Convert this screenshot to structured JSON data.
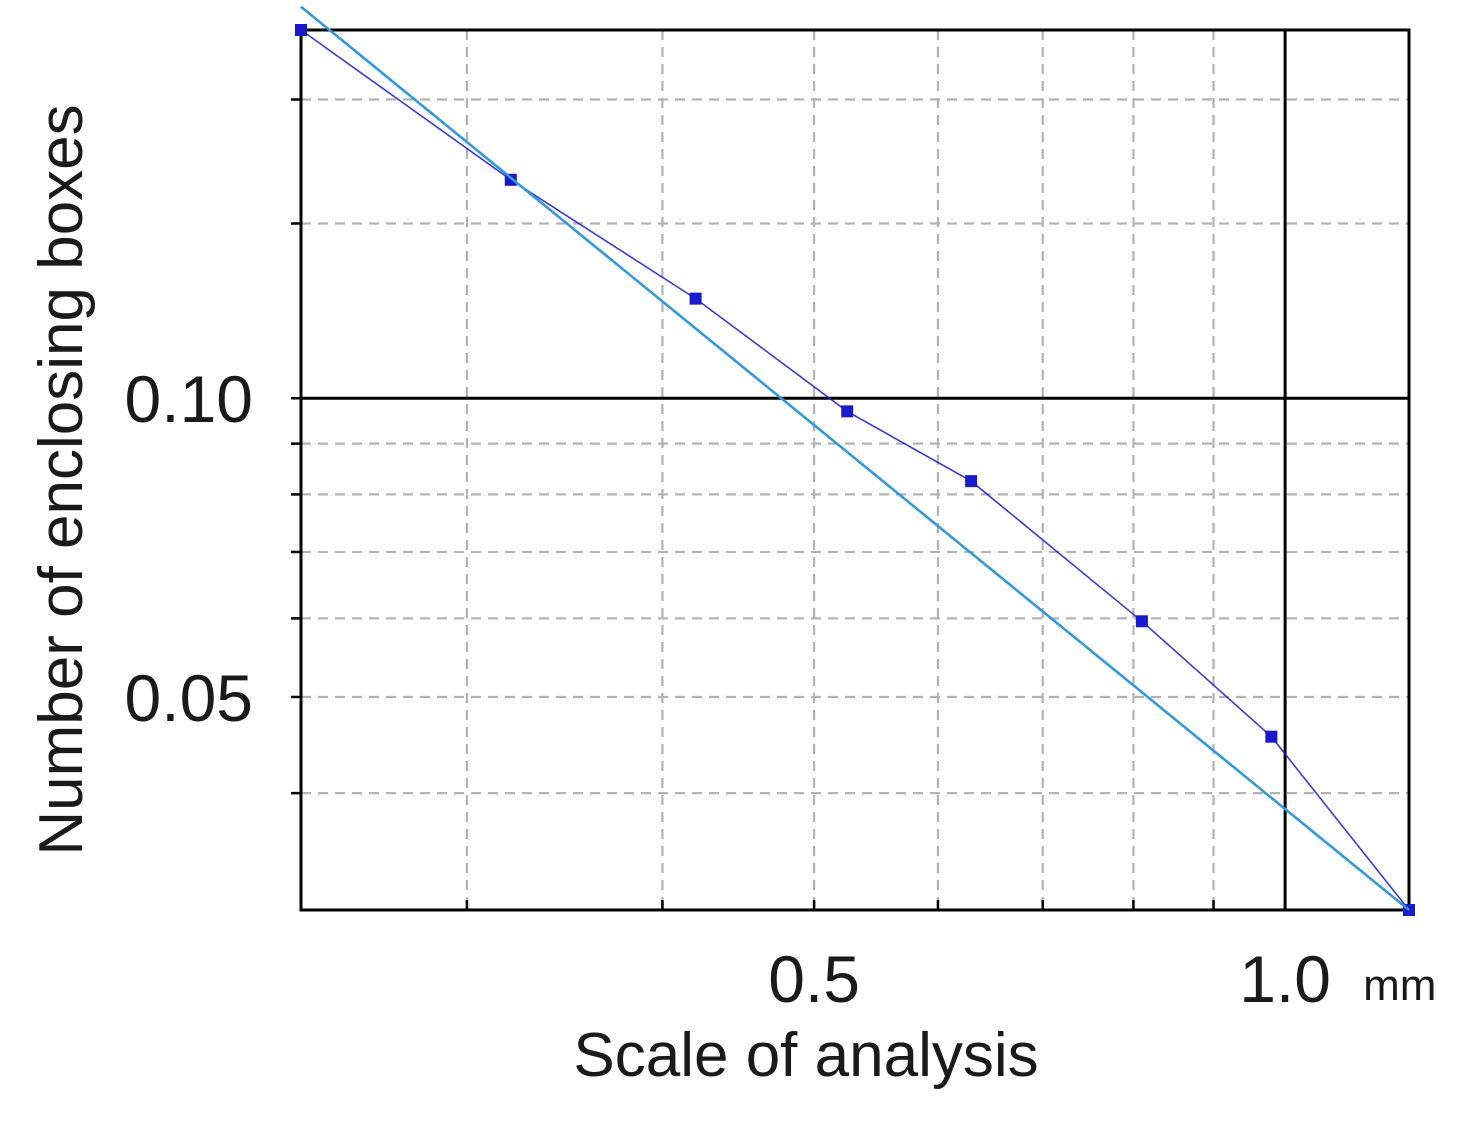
{
  "chart_data": {
    "type": "line",
    "title": "",
    "xlabel": "Scale of analysis",
    "ylabel": "Number of enclosing boxes",
    "x_unit": "mm",
    "x_scale": "log",
    "y_scale": "log",
    "xlim": [
      0.235,
      1.2
    ],
    "ylim": [
      0.0305,
      0.235
    ],
    "x_ticks": [
      {
        "value": 0.5,
        "label": "0.5"
      },
      {
        "value": 1.0,
        "label": "1.0"
      }
    ],
    "y_ticks": [
      {
        "value": 0.05,
        "label": "0.05"
      },
      {
        "value": 0.1,
        "label": "0.10"
      }
    ],
    "x_minor_gridlines": [
      0.3,
      0.4,
      0.6,
      0.7,
      0.8,
      0.9
    ],
    "y_minor_gridlines": [
      0.04,
      0.06,
      0.07,
      0.08,
      0.09,
      0.15,
      0.2
    ],
    "x_major_gridlines": [
      1.0
    ],
    "y_major_gridlines": [
      0.1
    ],
    "grid": true,
    "series": [
      {
        "kind": "data",
        "color": "#1a1acc",
        "points": [
          [
            0.235,
            0.235
          ],
          [
            0.32,
            0.166
          ],
          [
            0.42,
            0.126
          ],
          [
            0.525,
            0.097
          ],
          [
            0.63,
            0.0825
          ],
          [
            0.81,
            0.0596
          ],
          [
            0.98,
            0.0456
          ],
          [
            1.2,
            0.0305
          ]
        ]
      },
      {
        "kind": "fit",
        "color": "#3399dd",
        "points": [
          [
            0.235,
            0.248
          ],
          [
            1.2,
            0.0305
          ]
        ]
      }
    ]
  }
}
